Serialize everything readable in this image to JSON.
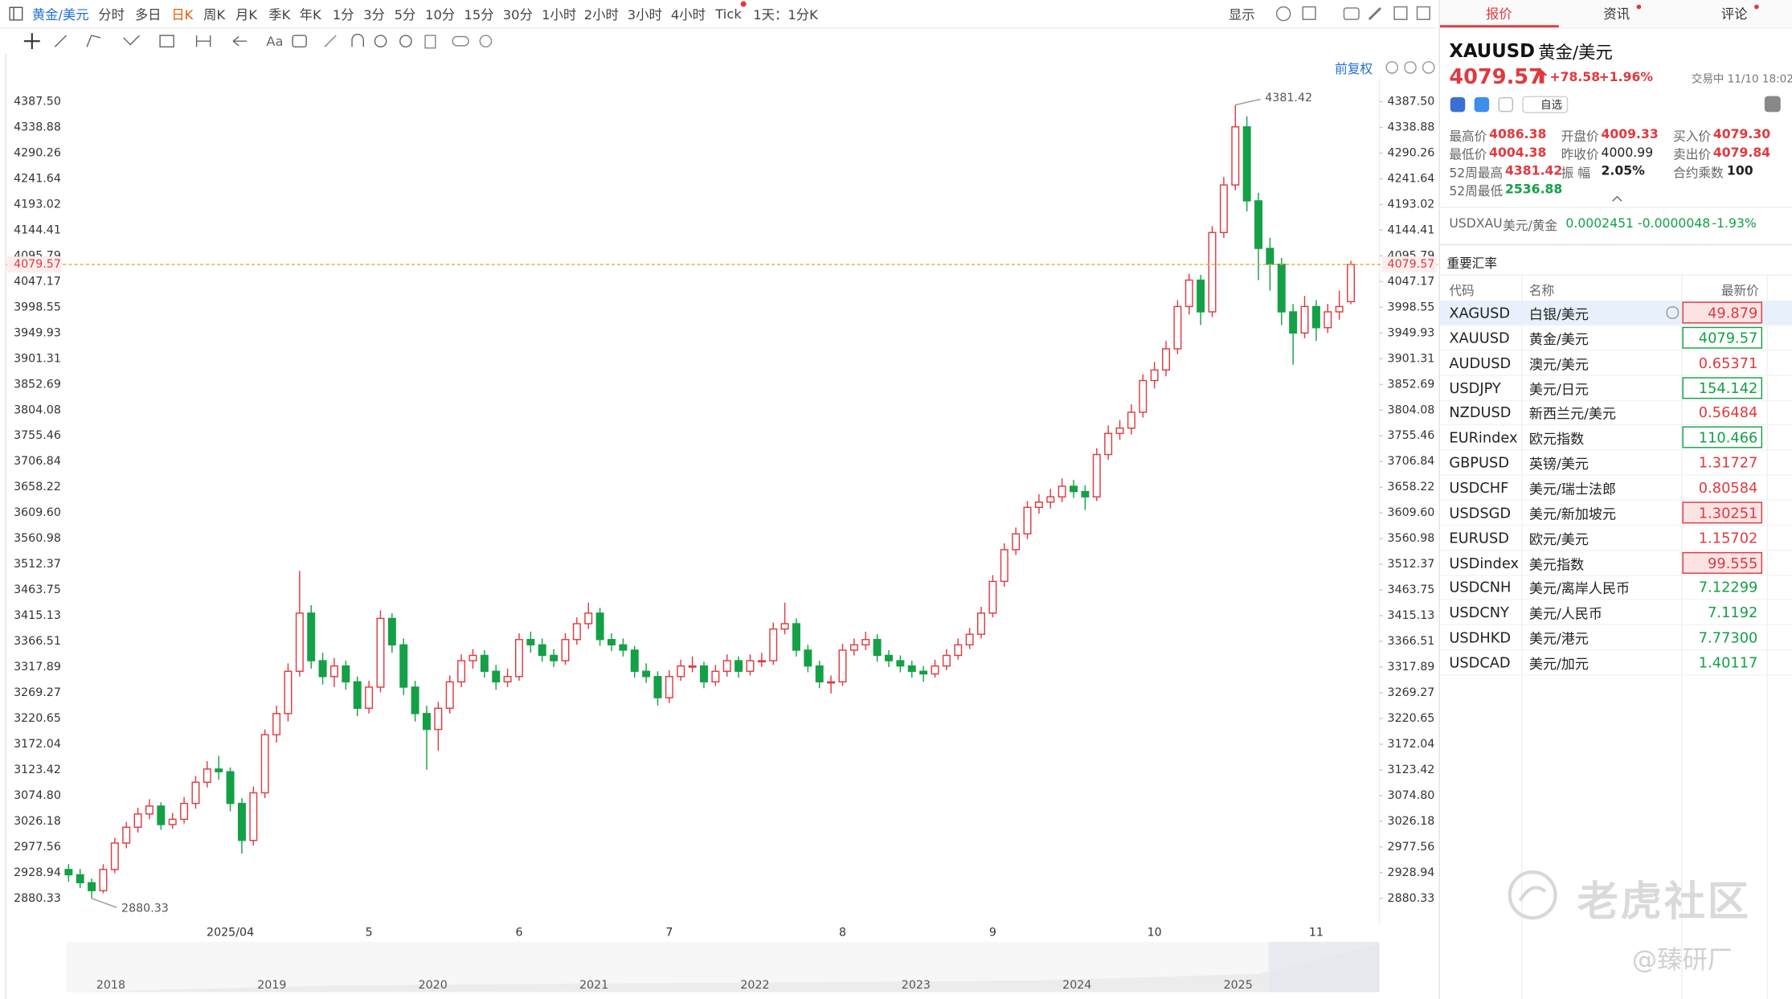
{
  "toolbar": {
    "symbol": "黄金/美元",
    "periods": [
      "分时",
      "多日",
      "日K",
      "周K",
      "月K",
      "季K",
      "年K",
      "1分",
      "3分",
      "5分",
      "10分",
      "15分",
      "30分",
      "1小时",
      "2小时",
      "3小时",
      "4小时",
      "Tick"
    ],
    "interval": "1天：1分K",
    "display": "显示",
    "text_tool": "Aa"
  },
  "chart_data": {
    "type": "candlestick",
    "adjust": "前复权",
    "categories": [
      null,
      null,
      null,
      null,
      null,
      null,
      null,
      null,
      null,
      null,
      null,
      null,
      null,
      null,
      "2025/04",
      null,
      null,
      null,
      null,
      null,
      null,
      null,
      null,
      null,
      null,
      null,
      "5",
      null,
      null,
      null,
      null,
      null,
      null,
      null,
      null,
      null,
      null,
      null,
      null,
      "6",
      null,
      null,
      null,
      null,
      null,
      null,
      null,
      null,
      null,
      null,
      null,
      null,
      "7",
      null,
      null,
      null,
      null,
      null,
      null,
      null,
      null,
      null,
      null,
      null,
      null,
      null,
      null,
      "8",
      null,
      null,
      null,
      null,
      null,
      null,
      null,
      null,
      null,
      null,
      null,
      null,
      "9",
      null,
      null,
      null,
      null,
      null,
      null,
      null,
      null,
      null,
      null,
      null,
      null,
      null,
      "10",
      null,
      null,
      null,
      null,
      null,
      null,
      null,
      null,
      null,
      null,
      null,
      null,
      null,
      "11",
      null,
      null,
      null
    ],
    "open": [
      2935,
      2925,
      2910,
      2895,
      2935,
      2985,
      3015,
      3040,
      3055,
      3020,
      3030,
      3060,
      3100,
      3125,
      3120,
      3060,
      2990,
      3080,
      3190,
      3230,
      3310,
      3420,
      3330,
      3300,
      3320,
      3290,
      3240,
      3280,
      3410,
      3360,
      3280,
      3230,
      3200,
      3240,
      3290,
      3330,
      3340,
      3310,
      3290,
      3300,
      3370,
      3360,
      3340,
      3330,
      3370,
      3400,
      3420,
      3370,
      3360,
      3350,
      3310,
      3300,
      3260,
      3300,
      3320,
      3320,
      3290,
      3310,
      3330,
      3310,
      3330,
      3330,
      3390,
      3400,
      3350,
      3320,
      3290,
      3290,
      3350,
      3360,
      3370,
      3340,
      3330,
      3320,
      3310,
      3305,
      3320,
      3340,
      3360,
      3380,
      3420,
      3480,
      3540,
      3570,
      3620,
      3630,
      3640,
      3660,
      3650,
      3640,
      3720,
      3760,
      3770,
      3800,
      3860,
      3880,
      3920,
      4000,
      4050,
      3990,
      4140,
      4230,
      4340,
      4200,
      4110,
      4080,
      3990,
      3950,
      4000,
      3960,
      3990,
      4009.33
    ],
    "high": [
      2945,
      2936,
      2918,
      2945,
      2995,
      3025,
      3052,
      3068,
      3062,
      3042,
      3072,
      3112,
      3140,
      3150,
      3128,
      3070,
      3092,
      3200,
      3245,
      3325,
      3500,
      3435,
      3345,
      3335,
      3330,
      3300,
      3292,
      3425,
      3420,
      3372,
      3292,
      3245,
      3252,
      3302,
      3342,
      3352,
      3350,
      3322,
      3315,
      3382,
      3385,
      3372,
      3352,
      3382,
      3412,
      3440,
      3430,
      3382,
      3372,
      3358,
      3325,
      3310,
      3312,
      3332,
      3338,
      3328,
      3322,
      3342,
      3338,
      3342,
      3345,
      3402,
      3440,
      3410,
      3360,
      3330,
      3302,
      3362,
      3372,
      3385,
      3380,
      3350,
      3340,
      3330,
      3320,
      3332,
      3352,
      3372,
      3392,
      3432,
      3492,
      3552,
      3582,
      3632,
      3645,
      3655,
      3675,
      3672,
      3662,
      3732,
      3775,
      3785,
      3815,
      3872,
      3895,
      3935,
      4012,
      4062,
      4060,
      4152,
      4245,
      4381.42,
      4360,
      4215,
      4130,
      4092,
      4005,
      4020,
      4012,
      4005,
      4030,
      4086.38
    ],
    "low": [
      2912,
      2900,
      2880.33,
      2890,
      2928,
      2975,
      3005,
      3030,
      3010,
      3012,
      3022,
      3050,
      3090,
      3105,
      3045,
      2965,
      2980,
      3070,
      3175,
      3215,
      3300,
      3315,
      3285,
      3280,
      3275,
      3225,
      3230,
      3270,
      3345,
      3265,
      3215,
      3124,
      3160,
      3230,
      3280,
      3315,
      3298,
      3275,
      3280,
      3292,
      3345,
      3328,
      3318,
      3322,
      3360,
      3390,
      3358,
      3348,
      3338,
      3298,
      3288,
      3245,
      3250,
      3292,
      3308,
      3278,
      3282,
      3300,
      3298,
      3302,
      3318,
      3322,
      3380,
      3338,
      3308,
      3278,
      3268,
      3282,
      3340,
      3350,
      3328,
      3318,
      3308,
      3298,
      3290,
      3298,
      3312,
      3332,
      3352,
      3372,
      3412,
      3470,
      3530,
      3560,
      3608,
      3618,
      3630,
      3638,
      3615,
      3632,
      3710,
      3748,
      3758,
      3790,
      3845,
      3868,
      3910,
      3985,
      3965,
      3980,
      4130,
      4220,
      4180,
      4050,
      4030,
      3965,
      3890,
      3940,
      3935,
      3950,
      3975,
      4004.38
    ],
    "close": [
      2925,
      2910,
      2895,
      2935,
      2985,
      3015,
      3040,
      3055,
      3020,
      3030,
      3060,
      3100,
      3125,
      3120,
      3060,
      2990,
      3080,
      3190,
      3230,
      3310,
      3420,
      3330,
      3300,
      3320,
      3290,
      3240,
      3280,
      3410,
      3360,
      3280,
      3230,
      3200,
      3240,
      3290,
      3330,
      3340,
      3310,
      3290,
      3300,
      3370,
      3360,
      3340,
      3330,
      3370,
      3400,
      3420,
      3370,
      3360,
      3350,
      3310,
      3300,
      3260,
      3300,
      3320,
      3320,
      3290,
      3310,
      3330,
      3310,
      3330,
      3330,
      3390,
      3400,
      3350,
      3320,
      3290,
      3290,
      3350,
      3360,
      3370,
      3340,
      3330,
      3320,
      3310,
      3305,
      3320,
      3340,
      3360,
      3380,
      3420,
      3480,
      3540,
      3570,
      3620,
      3630,
      3640,
      3660,
      3650,
      3640,
      3720,
      3760,
      3770,
      3800,
      3860,
      3880,
      3920,
      4000,
      4050,
      3990,
      4140,
      4230,
      4340,
      4200,
      4110,
      4080,
      3990,
      3950,
      4000,
      3960,
      3990,
      4000,
      4079.57
    ],
    "up_color": "#e0393e",
    "down_color": "#14a046",
    "price_line_color": "#f0a04b",
    "grid": false,
    "ylim": [
      2832.7,
      4432.9
    ],
    "yticks": [
      {
        "value": 4387.5,
        "label": "4387.50"
      },
      4338.88,
      4290.26,
      4241.64,
      4193.02,
      4144.41,
      4095.79,
      4047.17,
      3998.55,
      3949.93,
      3901.31,
      3852.69,
      3804.08,
      3755.46,
      3706.84,
      3658.22,
      {
        "value": 3609.6,
        "label": "3609.60"
      },
      3560.98,
      3512.37,
      3463.75,
      3415.13,
      3366.51,
      3317.89,
      3269.27,
      3220.65,
      3172.04,
      3123.42,
      {
        "value": 3074.8,
        "label": "3074.80"
      },
      3026.18,
      2977.56,
      2928.94,
      2880.33
    ]
  },
  "navigator": {
    "labels": [
      "2018",
      "2019",
      "2020",
      "2021",
      "2022",
      "2023",
      "2024",
      "2025"
    ]
  },
  "quote": {
    "tabs": [
      "报价",
      "资讯",
      "评论"
    ],
    "code": "XAUUSD",
    "name": "黄金/美元",
    "price": "4079.57",
    "change": "+78.58",
    "change_pct": "+1.96%",
    "status": "交易中 11/10 18:02",
    "watchlist": "自选",
    "stats": [
      [
        "最高价",
        "4086.38"
      ],
      [
        "开盘价",
        "4009.33"
      ],
      [
        "买入价",
        "4079.30"
      ],
      [
        "最低价",
        "4004.38"
      ],
      [
        "昨收价",
        "4000.99"
      ],
      [
        "卖出价",
        "4079.84"
      ],
      [
        "52周最高",
        "4381.42"
      ],
      [
        "振 幅",
        "2.05%"
      ],
      [
        "合约乘数",
        "100"
      ],
      [
        "52周最低",
        "2536.88"
      ]
    ],
    "related": {
      "code": "USDXAU",
      "name": "美元/黄金",
      "price": "0.0002451",
      "change": "-0.0000048",
      "change_pct": "-1.93%"
    }
  },
  "rates": {
    "title": "重要汇率",
    "columns": [
      "代码",
      "名称",
      "最新价"
    ],
    "rows": [
      {
        "code": "XAGUSD",
        "name": "白银/美元",
        "price": "49.879",
        "color": "#e0393e",
        "highlight": "#fbe3e4"
      },
      {
        "code": "XAUUSD",
        "name": "黄金/美元",
        "price": "4079.57",
        "color": "#14a046",
        "highlight": "#ffffff"
      },
      {
        "code": "AUDUSD",
        "name": "澳元/美元",
        "price": "0.65371",
        "color": "#e0393e"
      },
      {
        "code": "USDJPY",
        "name": "美元/日元",
        "price": "154.142",
        "color": "#14a046",
        "highlight": "#ffffff"
      },
      {
        "code": "NZDUSD",
        "name": "新西兰元/美元",
        "price": "0.56484",
        "color": "#e0393e"
      },
      {
        "code": "EURindex",
        "name": "欧元指数",
        "price": "110.466",
        "color": "#14a046",
        "highlight": "#ffffff"
      },
      {
        "code": "GBPUSD",
        "name": "英镑/美元",
        "price": "1.31727",
        "color": "#e0393e"
      },
      {
        "code": "USDCHF",
        "name": "美元/瑞士法郎",
        "price": "0.80584",
        "color": "#e0393e"
      },
      {
        "code": "USDSGD",
        "name": "美元/新加坡元",
        "price": "1.30251",
        "color": "#e0393e",
        "highlight": "#fbe3e4"
      },
      {
        "code": "EURUSD",
        "name": "欧元/美元",
        "price": "1.15702",
        "color": "#e0393e"
      },
      {
        "code": "USDindex",
        "name": "美元指数",
        "price": "99.555",
        "color": "#e0393e",
        "highlight": "#fbe3e4"
      },
      {
        "code": "USDCNH",
        "name": "美元/离岸人民币",
        "price": "7.12299",
        "color": "#14a046"
      },
      {
        "code": "USDCNY",
        "name": "美元/人民币",
        "price": "7.1192",
        "color": "#14a046"
      },
      {
        "code": "USDHKD",
        "name": "美元/港元",
        "price": "7.77300",
        "color": "#14a046"
      },
      {
        "code": "USDCAD",
        "name": "美元/加元",
        "price": "1.40117",
        "color": "#14a046"
      }
    ]
  },
  "watermark": {
    "brand": "老虎社区",
    "author": "@臻研厂"
  }
}
